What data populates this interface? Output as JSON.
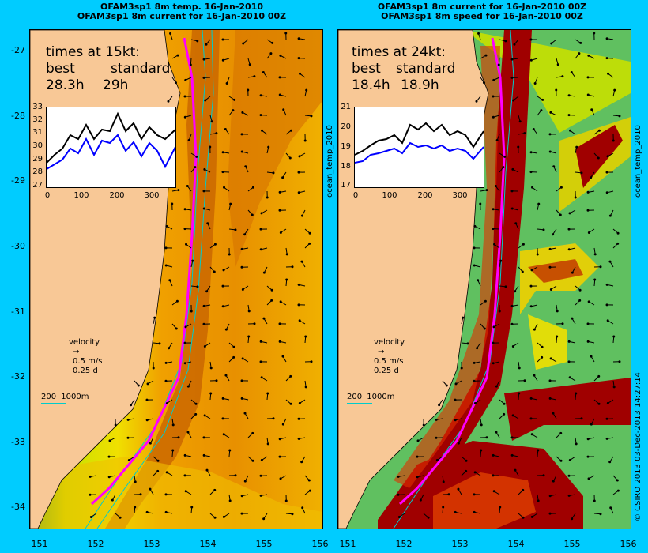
{
  "panels": {
    "left": {
      "title_line1": "OFAM3sp1 8m temp. 16-Jan-2010",
      "title_line2": "OFAM3sp1 8m current for 16-Jan-2010 00Z",
      "times_heading": "times at 15kt:",
      "col_best": "best",
      "col_standard": "standard",
      "best_value": "28.3h",
      "standard_value": "29h",
      "inset_yticks": [
        "33",
        "32",
        "31",
        "30",
        "29",
        "28",
        "27"
      ],
      "inset_xticks": [
        "0",
        "100",
        "200",
        "300"
      ],
      "side_label": "ocean_temp_2010"
    },
    "right": {
      "title_line1": "OFAM3sp1 8m current for 16-Jan-2010 00Z",
      "title_line2": "OFAM3sp1 8m speed for 16-Jan-2010 00Z",
      "times_heading": "times at 24kt:",
      "col_best": "best",
      "col_standard": "standard",
      "best_value": "18.4h",
      "standard_value": "18.9h",
      "inset_yticks": [
        "21",
        "20",
        "19",
        "18",
        "17"
      ],
      "inset_xticks": [
        "0",
        "100",
        "200",
        "300"
      ],
      "side_label": "ocean_temp_2010"
    }
  },
  "key": {
    "label": "velocity",
    "speed": "0.5 m/s",
    "time": "0.25 d"
  },
  "scale_bar": {
    "label1": "200",
    "label2": "1000m"
  },
  "axes": {
    "y_ticks": [
      "-27",
      "-28",
      "-29",
      "-30",
      "-31",
      "-32",
      "-33",
      "-34"
    ],
    "x_ticks": [
      "151",
      "152",
      "153",
      "154",
      "155",
      "156"
    ]
  },
  "credit": "© CSIRO 2013  03-Dec-2013 14:27:14",
  "colors": {
    "background": "#00ccff",
    "land": "#f8c896",
    "track_magenta": "#ff00ff",
    "series_black": "#000000",
    "series_blue": "#0000ff"
  }
}
